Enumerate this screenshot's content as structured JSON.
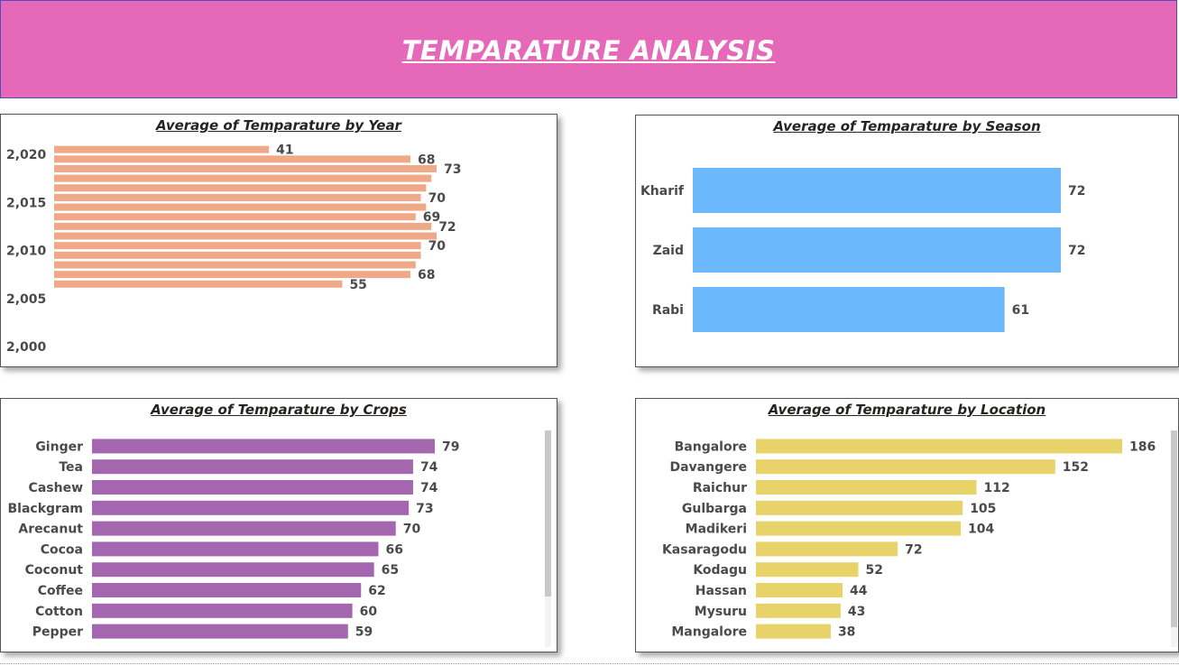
{
  "header": {
    "title": "TEMPARATURE ANALYSIS",
    "background": "#e668b9"
  },
  "chart_data": [
    {
      "type": "bar",
      "orientation": "horizontal",
      "title": "Average of Temparature by Year",
      "color": "#f0a988",
      "axis_ticks": [
        "2,020",
        "2,015",
        "2,010",
        "2,005",
        "2,000"
      ],
      "ylim": [
        2000,
        2021
      ],
      "x": [
        2020,
        2019,
        2018,
        2017,
        2016,
        2015,
        2014,
        2013,
        2012,
        2011,
        2010,
        2009,
        2008,
        2007,
        2006
      ],
      "values": [
        41,
        68,
        73,
        72,
        71,
        70,
        71,
        69,
        72,
        73,
        70,
        70,
        69,
        68,
        55
      ],
      "data_labels": [
        {
          "year": 2020,
          "label": "41"
        },
        {
          "year": 2019,
          "label": "68"
        },
        {
          "year": 2018,
          "label": "73"
        },
        {
          "year": 2015,
          "label": "70"
        },
        {
          "year": 2013,
          "label": "69"
        },
        {
          "year": 2012,
          "label": "72"
        },
        {
          "year": 2010,
          "label": "70"
        },
        {
          "year": 2007,
          "label": "68"
        },
        {
          "year": 2006,
          "label": "55"
        }
      ],
      "xlim": [
        0,
        80
      ]
    },
    {
      "type": "bar",
      "orientation": "horizontal",
      "title": "Average of Temparature by Season",
      "color": "#6cb8fc",
      "categories": [
        "Kharif",
        "Zaid",
        "Rabi"
      ],
      "values": [
        72,
        72,
        61
      ],
      "xlim": [
        0,
        80
      ]
    },
    {
      "type": "bar",
      "orientation": "horizontal",
      "title": "Average of Temparature by Crops",
      "color": "#a566b0",
      "categories": [
        "Ginger",
        "Tea",
        "Cashew",
        "Blackgram",
        "Arecanut",
        "Cocoa",
        "Coconut",
        "Coffee",
        "Cotton",
        "Pepper"
      ],
      "values": [
        79,
        74,
        74,
        73,
        70,
        66,
        65,
        62,
        60,
        59
      ],
      "xlim": [
        0,
        79
      ]
    },
    {
      "type": "bar",
      "orientation": "horizontal",
      "title": "Average of Temparature by Location",
      "color": "#e8d36a",
      "categories": [
        "Bangalore",
        "Davangere",
        "Raichur",
        "Gulbarga",
        "Madikeri",
        "Kasaragodu",
        "Kodagu",
        "Hassan",
        "Mysuru",
        "Mangalore"
      ],
      "values": [
        186,
        152,
        112,
        105,
        104,
        72,
        52,
        44,
        43,
        38
      ],
      "xlim": [
        0,
        186
      ]
    }
  ]
}
